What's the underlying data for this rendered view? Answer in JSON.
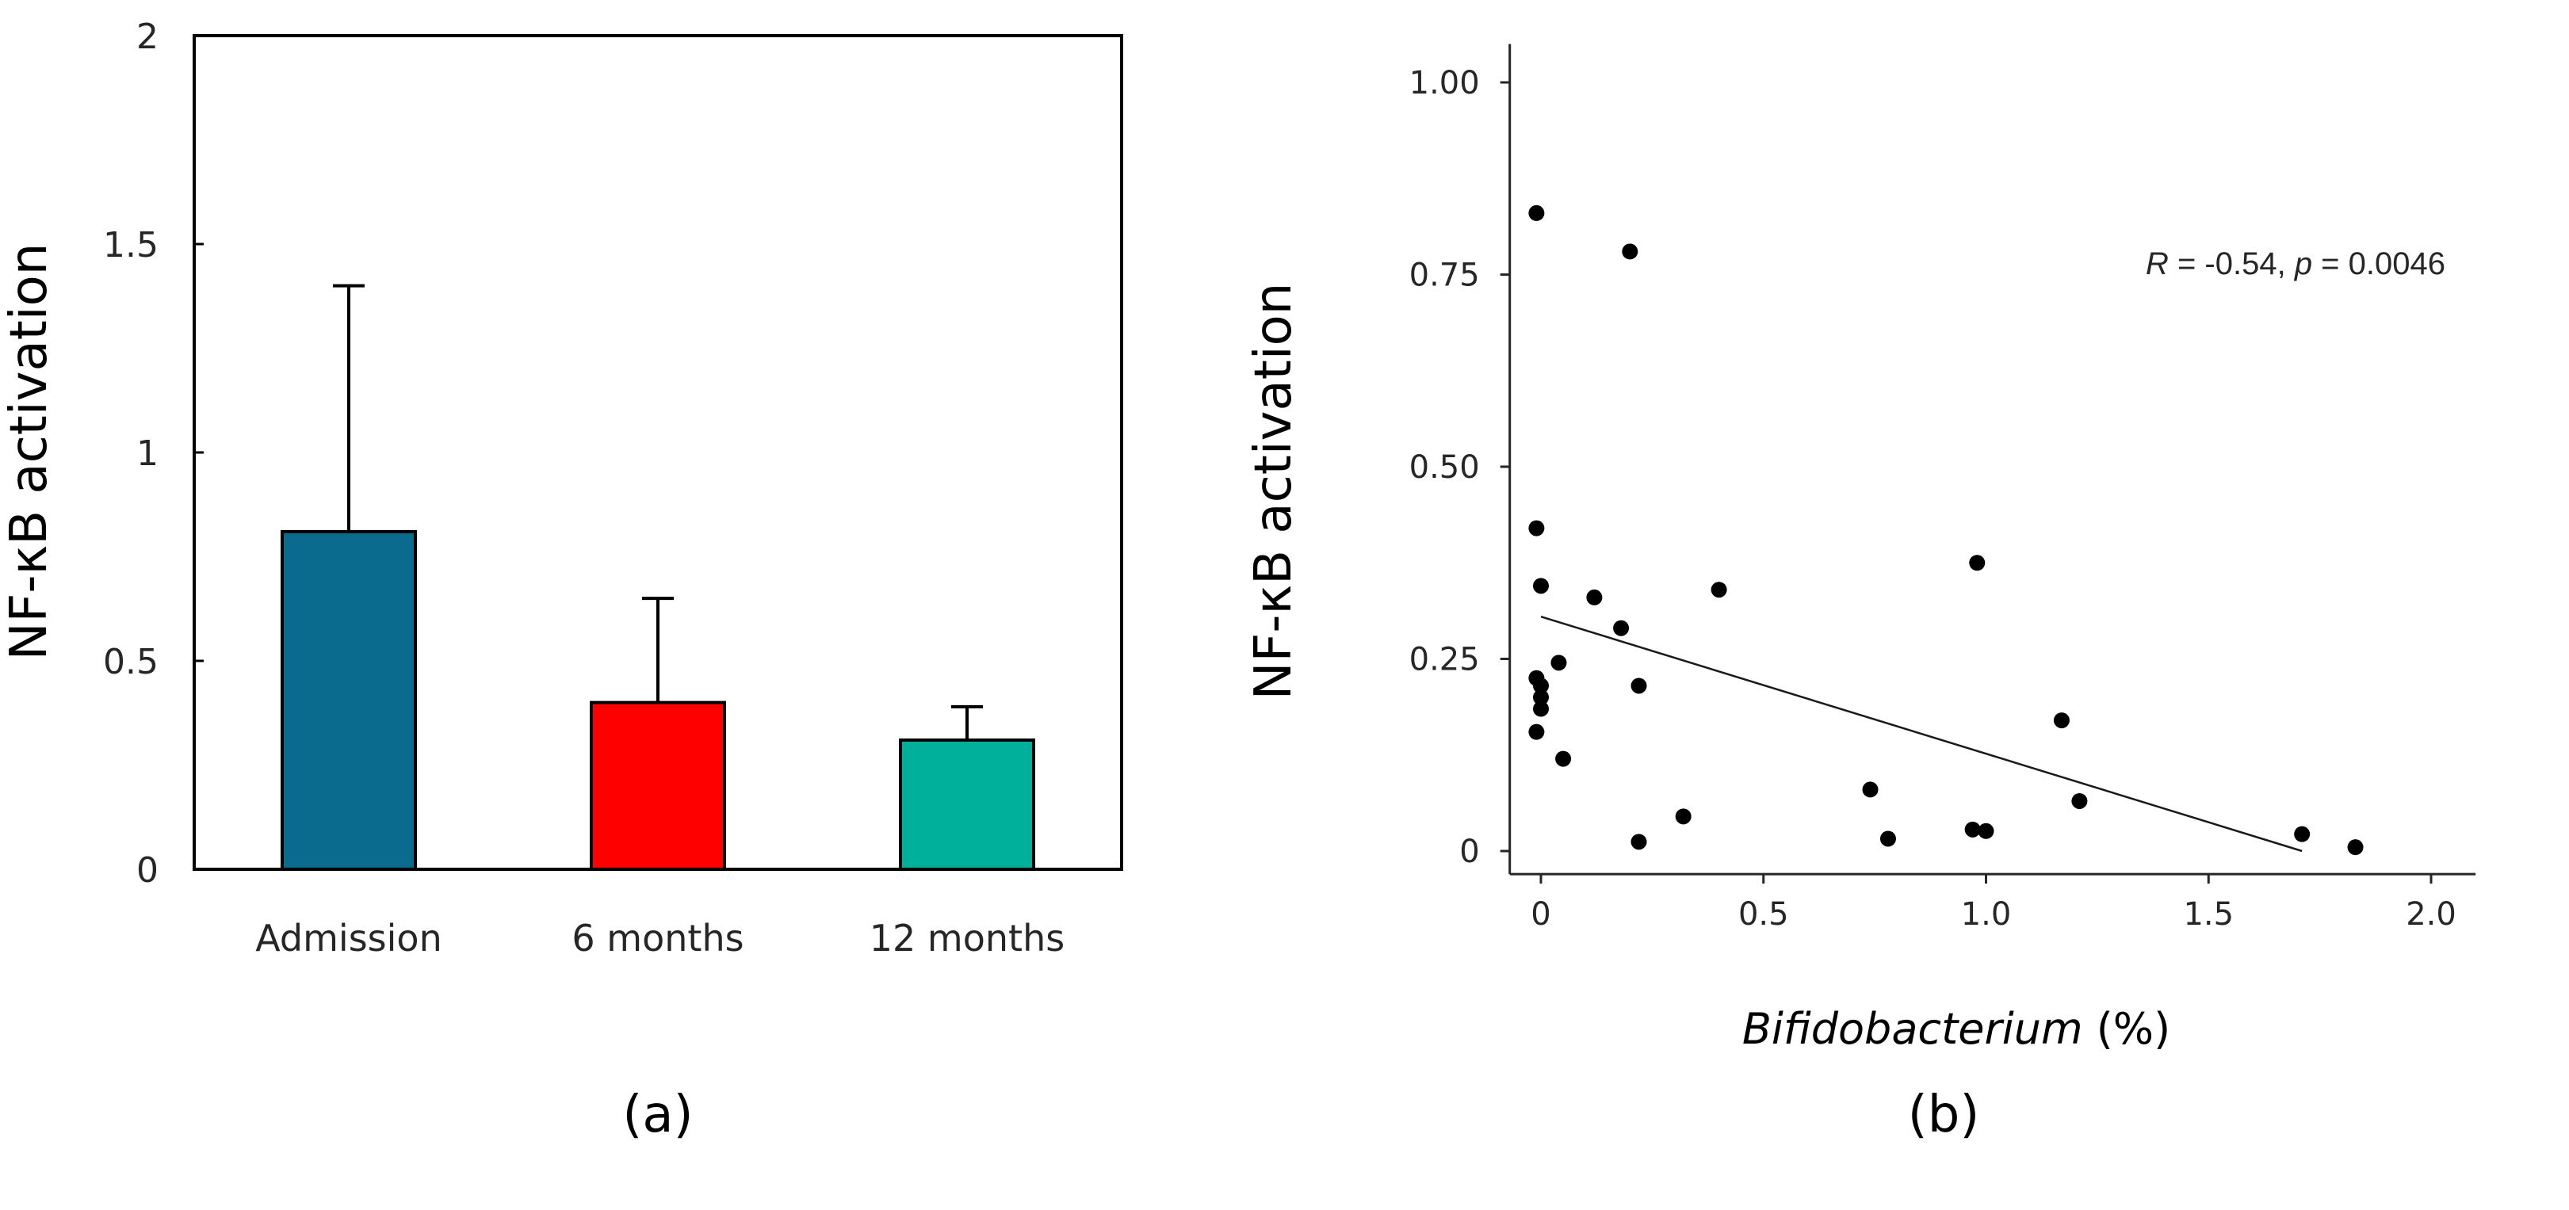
{
  "chart_data": [
    {
      "type": "bar",
      "panel_label": "(a)",
      "categories": [
        "Admission",
        "6 months",
        "12 months"
      ],
      "values": [
        0.81,
        0.4,
        0.31
      ],
      "errors": [
        0.59,
        0.25,
        0.08
      ],
      "colors": [
        "#0a6b8f",
        "#ff0000",
        "#00b09a"
      ],
      "ylabel": "NF-κB activation",
      "ylim": [
        0,
        2
      ],
      "yticks": [
        0,
        0.5,
        1,
        1.5,
        2
      ],
      "ytick_labels": [
        "0",
        "0.5",
        "1",
        "1.5",
        "2"
      ],
      "grid": false
    },
    {
      "type": "scatter",
      "panel_label": "(b)",
      "ylabel": "NF-κB activation",
      "xlabel_italic": "Bifidobacterium",
      "xlabel_rest": " (%)",
      "xlim": [
        -0.07,
        2.1
      ],
      "ylim": [
        -0.03,
        1.05
      ],
      "xticks": [
        0,
        0.5,
        1.0,
        1.5,
        2.0
      ],
      "xtick_labels": [
        "0",
        "0.5",
        "1.0",
        "1.5",
        "2.0"
      ],
      "yticks": [
        0,
        0.25,
        0.5,
        0.75,
        1.0
      ],
      "ytick_labels": [
        "0",
        "0.25",
        "0.50",
        "0.75",
        "1.00"
      ],
      "annotation": {
        "r_symbol": "R",
        "r_text": " = -0.54, ",
        "p_symbol": "p",
        "p_text": " = 0.0046"
      },
      "fit_line": {
        "x": [
          0,
          1.71
        ],
        "y": [
          0.305,
          0.0
        ]
      },
      "points": [
        {
          "x": -0.01,
          "y": 0.83
        },
        {
          "x": 0.2,
          "y": 0.78
        },
        {
          "x": -0.01,
          "y": 0.42
        },
        {
          "x": 0.98,
          "y": 0.375
        },
        {
          "x": 0.0,
          "y": 0.345
        },
        {
          "x": 0.4,
          "y": 0.34
        },
        {
          "x": 0.12,
          "y": 0.33
        },
        {
          "x": 0.18,
          "y": 0.29
        },
        {
          "x": 0.04,
          "y": 0.245
        },
        {
          "x": -0.01,
          "y": 0.225
        },
        {
          "x": 0.0,
          "y": 0.215
        },
        {
          "x": 0.22,
          "y": 0.215
        },
        {
          "x": 0.0,
          "y": 0.2
        },
        {
          "x": 0.0,
          "y": 0.185
        },
        {
          "x": 1.17,
          "y": 0.17
        },
        {
          "x": -0.01,
          "y": 0.155
        },
        {
          "x": 0.05,
          "y": 0.12
        },
        {
          "x": 0.74,
          "y": 0.08
        },
        {
          "x": 1.21,
          "y": 0.065
        },
        {
          "x": 0.32,
          "y": 0.045
        },
        {
          "x": 0.97,
          "y": 0.028
        },
        {
          "x": 1.0,
          "y": 0.026
        },
        {
          "x": 1.71,
          "y": 0.022
        },
        {
          "x": 0.78,
          "y": 0.016
        },
        {
          "x": 0.22,
          "y": 0.012
        },
        {
          "x": 1.83,
          "y": 0.005
        }
      ]
    }
  ]
}
